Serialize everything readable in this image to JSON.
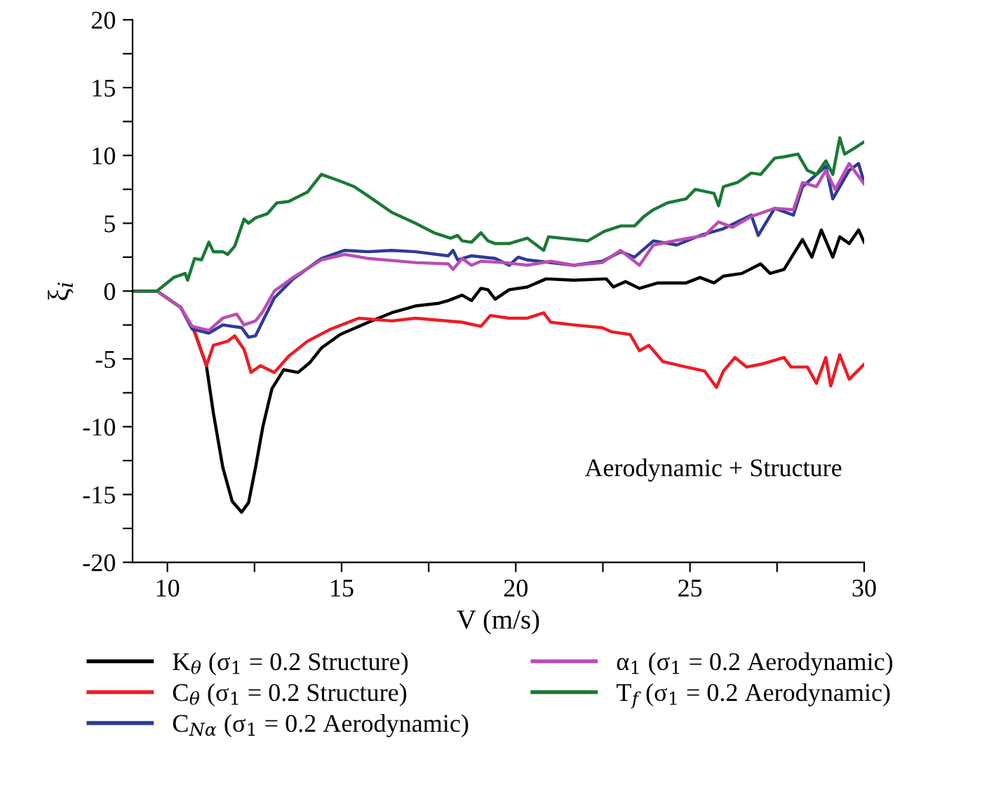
{
  "chart_data": {
    "type": "line",
    "xlabel": "V (m/s)",
    "ylabel": "ξ$_{i}$",
    "annotations": [
      "Aerodynamic + Structure"
    ],
    "xlim": [
      9,
      30
    ],
    "ylim": [
      -20,
      20
    ],
    "xticks": [
      10,
      {
        "value": 12.5,
        "label": null
      },
      15,
      {
        "value": 17.5,
        "label": null
      },
      20,
      {
        "value": 22.5,
        "label": null
      },
      25,
      {
        "value": 27.5,
        "label": null
      },
      30
    ],
    "yticks": [
      -20,
      {
        "value": -17.5,
        "label": null
      },
      -15,
      {
        "value": -12.5,
        "label": null
      },
      -10,
      {
        "value": -7.5,
        "label": null
      },
      -5,
      {
        "value": -2.5,
        "label": null
      },
      0,
      {
        "value": 2.5,
        "label": null
      },
      5,
      {
        "value": 7.5,
        "label": null
      },
      10,
      {
        "value": 12.5,
        "label": null
      },
      15,
      {
        "value": 17.5,
        "label": null
      },
      20
    ],
    "grid": false,
    "legend": "bottom",
    "marker": "none",
    "line_style": "solid",
    "series": [
      {
        "name": "K$_{θ}$ (σ$_{1}$ = 0.2 Structure)",
        "color": "#000000",
        "x": [
          9.0,
          9.7,
          10.38,
          10.78,
          11.12,
          11.32,
          11.59,
          11.86,
          12.13,
          12.33,
          12.53,
          12.74,
          13.0,
          13.34,
          13.75,
          14.08,
          14.42,
          14.96,
          15.77,
          16.44,
          17.12,
          17.79,
          18.06,
          18.46,
          18.73,
          19.0,
          19.2,
          19.41,
          19.81,
          20.33,
          20.87,
          21.67,
          22.6,
          22.8,
          23.15,
          23.55,
          24.08,
          24.89,
          25.29,
          25.69,
          25.96,
          26.49,
          27.03,
          27.3,
          27.7,
          28.23,
          28.5,
          28.77,
          29.1,
          29.3,
          29.57,
          29.84,
          30.0
        ],
        "values": [
          0,
          0,
          -1.2,
          -3.0,
          -5.5,
          -9,
          -13,
          -15.5,
          -16.3,
          -15.6,
          -13,
          -10,
          -7.2,
          -5.8,
          -6.0,
          -5.3,
          -4.2,
          -3.2,
          -2.3,
          -1.6,
          -1.1,
          -0.9,
          -0.7,
          -0.3,
          -0.7,
          0.2,
          0.1,
          -0.6,
          0.1,
          0.3,
          0.9,
          0.8,
          0.9,
          0.3,
          0.7,
          0.2,
          0.6,
          0.6,
          1.0,
          0.6,
          1.1,
          1.3,
          2.0,
          1.3,
          1.6,
          3.8,
          2.5,
          4.5,
          2.5,
          4.0,
          3.5,
          4.5,
          3.6
        ]
      },
      {
        "name": "C$_{θ}$ (σ$_{1}$ = 0.2 Structure)",
        "color": "#ed1c24",
        "x": [
          10.38,
          10.78,
          11.12,
          11.32,
          11.73,
          11.93,
          12.2,
          12.4,
          12.67,
          13.07,
          13.48,
          14.02,
          14.69,
          15.5,
          16.44,
          17.12,
          18.46,
          19.0,
          19.27,
          19.81,
          20.33,
          20.8,
          21.0,
          21.67,
          22.48,
          22.74,
          23.28,
          23.55,
          23.82,
          24.22,
          24.89,
          25.42,
          25.76,
          25.96,
          26.29,
          26.63,
          27.03,
          27.7,
          27.9,
          28.37,
          28.63,
          28.9,
          29.04,
          29.3,
          29.57,
          30.0
        ],
        "values": [
          -1.2,
          -3.0,
          -5.5,
          -4.0,
          -3.7,
          -3.3,
          -4.3,
          -6.0,
          -5.5,
          -6.0,
          -4.8,
          -3.7,
          -2.8,
          -2.0,
          -2.2,
          -2.0,
          -2.3,
          -2.6,
          -1.8,
          -2.0,
          -2.0,
          -1.6,
          -2.3,
          -2.5,
          -2.7,
          -3.0,
          -3.2,
          -4.4,
          -4.0,
          -5.2,
          -5.6,
          -5.9,
          -7.1,
          -5.9,
          -4.9,
          -5.6,
          -5.4,
          -4.9,
          -5.6,
          -5.6,
          -6.8,
          -4.9,
          -7.0,
          -4.7,
          -6.5,
          -5.4
        ]
      },
      {
        "name": "C$_{Nα}$ (σ$_{1}$ = 0.2 Aerodynamic)",
        "color": "#2e3a97",
        "x": [
          9.0,
          9.7,
          10.38,
          10.71,
          11.19,
          11.59,
          12.13,
          12.33,
          12.53,
          12.74,
          13.07,
          13.61,
          14.42,
          15.09,
          15.77,
          16.44,
          17.12,
          18.06,
          18.2,
          18.33,
          18.73,
          19.41,
          19.81,
          20.07,
          20.33,
          21.67,
          22.48,
          23.01,
          23.41,
          23.95,
          24.62,
          25.29,
          25.96,
          26.76,
          26.96,
          27.43,
          27.97,
          28.23,
          28.9,
          29.1,
          29.57,
          29.84,
          30.0
        ],
        "values": [
          0,
          0,
          -1.2,
          -2.8,
          -3.1,
          -2.5,
          -2.7,
          -3.4,
          -3.3,
          -2.2,
          -0.5,
          0.9,
          2.4,
          3.0,
          2.9,
          3.0,
          2.9,
          2.6,
          3.0,
          2.3,
          2.6,
          2.4,
          1.9,
          2.5,
          2.3,
          1.9,
          2.2,
          2.9,
          2.5,
          3.7,
          3.4,
          4.1,
          4.6,
          5.6,
          4.1,
          6.1,
          5.6,
          7.7,
          9.2,
          6.8,
          8.9,
          9.4,
          8.0
        ]
      },
      {
        "name": "α$_{1}$ (σ$_{1}$ = 0.2 Aerodynamic)",
        "color": "#b94eb4",
        "x": [
          9.0,
          9.7,
          10.38,
          10.71,
          11.19,
          11.59,
          11.99,
          12.2,
          12.53,
          12.74,
          13.07,
          13.61,
          14.42,
          15.09,
          15.77,
          17.12,
          18.06,
          18.2,
          18.46,
          18.73,
          19.0,
          19.67,
          20.33,
          21.0,
          21.67,
          22.48,
          23.01,
          23.55,
          23.95,
          24.75,
          25.42,
          25.82,
          26.22,
          26.76,
          27.43,
          27.97,
          28.23,
          28.63,
          28.9,
          29.17,
          29.57,
          30.0
        ],
        "values": [
          0,
          0,
          -1.2,
          -2.6,
          -2.9,
          -2.0,
          -1.7,
          -2.5,
          -2.2,
          -1.5,
          0,
          1.0,
          2.3,
          2.7,
          2.4,
          2.1,
          2.0,
          1.6,
          2.4,
          1.9,
          2.2,
          2.1,
          1.9,
          2.2,
          1.9,
          2.1,
          3.0,
          1.9,
          3.4,
          3.8,
          4.1,
          5.1,
          4.7,
          5.5,
          6.1,
          6.0,
          8.0,
          7.7,
          8.9,
          7.5,
          9.4,
          7.9
        ]
      },
      {
        "name": "T$_{f}$ (σ$_{1}$ = 0.2 Aerodynamic)",
        "color": "#1a7a35",
        "x": [
          9.0,
          9.7,
          10.18,
          10.51,
          10.58,
          10.78,
          10.98,
          11.19,
          11.32,
          11.59,
          11.73,
          11.93,
          12.2,
          12.33,
          12.53,
          12.87,
          13.14,
          13.48,
          14.02,
          14.42,
          14.96,
          15.36,
          15.77,
          16.44,
          17.12,
          17.65,
          18.13,
          18.33,
          18.46,
          18.73,
          19.0,
          19.2,
          19.41,
          19.81,
          20.07,
          20.33,
          20.8,
          20.94,
          21.67,
          22.07,
          22.54,
          23.01,
          23.41,
          23.68,
          23.95,
          24.35,
          24.89,
          25.15,
          25.69,
          25.82,
          25.96,
          26.36,
          26.76,
          27.03,
          27.43,
          27.7,
          28.1,
          28.37,
          28.63,
          28.9,
          29.1,
          29.3,
          29.44,
          29.7,
          30.0
        ],
        "values": [
          0,
          0,
          1.0,
          1.3,
          0.8,
          2.4,
          2.3,
          3.6,
          2.9,
          2.9,
          2.7,
          3.3,
          5.3,
          5.0,
          5.4,
          5.7,
          6.5,
          6.6,
          7.3,
          8.6,
          8.1,
          7.7,
          7.0,
          5.8,
          5.0,
          4.3,
          3.9,
          4.1,
          3.7,
          3.6,
          4.3,
          3.7,
          3.5,
          3.5,
          3.7,
          3.9,
          3.0,
          4.0,
          3.8,
          3.7,
          4.4,
          4.8,
          4.8,
          5.5,
          6.0,
          6.5,
          6.8,
          7.5,
          7.2,
          6.3,
          7.7,
          8.0,
          8.7,
          8.6,
          9.8,
          9.9,
          10.1,
          8.9,
          8.6,
          9.6,
          8.6,
          11.3,
          10.1,
          10.5,
          11.0
        ]
      }
    ]
  }
}
